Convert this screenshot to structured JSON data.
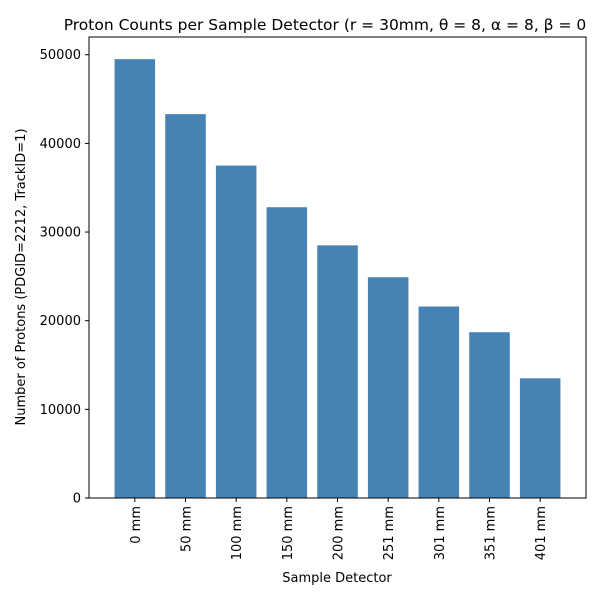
{
  "chart_data": {
    "type": "bar",
    "title": "Proton Counts per Sample Detector (r = 30mm, θ = 8, α = 8, β = 0",
    "xlabel": "Sample Detector",
    "ylabel": "Number of Protons (PDGID=2212, TrackID=1)",
    "categories": [
      "0 mm",
      "50 mm",
      "100 mm",
      "150 mm",
      "200 mm",
      "251 mm",
      "301 mm",
      "351 mm",
      "401 mm"
    ],
    "values": [
      49500,
      43300,
      37500,
      32800,
      28500,
      24900,
      21600,
      18700,
      13500
    ],
    "ylim": [
      0,
      52000
    ],
    "yticks": [
      0,
      10000,
      20000,
      30000,
      40000,
      50000
    ],
    "ytick_labels": [
      "0",
      "10000",
      "20000",
      "30000",
      "40000",
      "50000"
    ],
    "bar_color": "#4682b4",
    "grid": false,
    "legend": "none"
  }
}
